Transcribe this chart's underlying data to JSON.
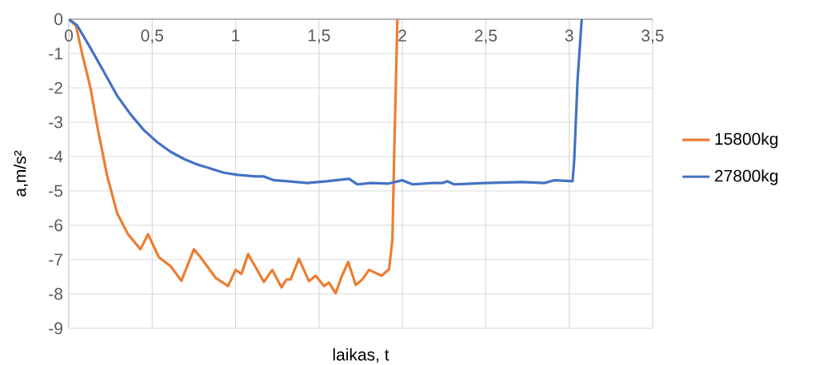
{
  "chart_data": {
    "type": "line",
    "xlabel": "laikas, t",
    "ylabel": "a,m/s²",
    "xlim": [
      0,
      3.5
    ],
    "ylim": [
      -9,
      0
    ],
    "xticks": [
      0,
      {
        "value": 0.5,
        "label": "0,5"
      },
      1,
      {
        "value": 1.5,
        "label": "1,5"
      },
      2,
      {
        "value": 2.5,
        "label": "2,5"
      },
      3,
      {
        "value": 3.5,
        "label": "3,5"
      }
    ],
    "yticks": [
      -9,
      -8,
      -7,
      -6,
      -5,
      -4,
      -3,
      -2,
      -1,
      0
    ],
    "grid": true,
    "legend": "right",
    "marker": "none",
    "line_style": "solid",
    "series": [
      {
        "name": "15800kg",
        "color": "#ed7d31",
        "x": [
          0,
          0.043,
          0.08,
          0.13,
          0.17,
          0.23,
          0.29,
          0.355,
          0.43,
          0.475,
          0.54,
          0.61,
          0.675,
          0.75,
          0.79,
          0.88,
          0.955,
          1.0,
          1.035,
          1.075,
          1.17,
          1.22,
          1.275,
          1.305,
          1.33,
          1.38,
          1.44,
          1.48,
          1.53,
          1.56,
          1.6,
          1.635,
          1.675,
          1.72,
          1.76,
          1.8,
          1.875,
          1.92,
          1.94,
          1.95,
          1.965,
          1.97
        ],
        "values": [
          0,
          -0.19,
          -1.0,
          -2.0,
          -3.1,
          -4.56,
          -5.65,
          -6.26,
          -6.7,
          -6.26,
          -6.93,
          -7.19,
          -7.62,
          -6.7,
          -6.93,
          -7.53,
          -7.77,
          -7.3,
          -7.42,
          -6.84,
          -7.65,
          -7.3,
          -7.81,
          -7.58,
          -7.58,
          -6.98,
          -7.63,
          -7.47,
          -7.77,
          -7.67,
          -7.98,
          -7.5,
          -7.07,
          -7.74,
          -7.58,
          -7.3,
          -7.47,
          -7.28,
          -6.42,
          -4.1,
          -1.0,
          0
        ]
      },
      {
        "name": "27800kg",
        "color": "#4472c4",
        "x": [
          0,
          0.05,
          0.13,
          0.21,
          0.29,
          0.37,
          0.45,
          0.53,
          0.61,
          0.69,
          0.77,
          0.85,
          0.93,
          1.01,
          1.12,
          1.17,
          1.23,
          1.31,
          1.43,
          1.55,
          1.68,
          1.73,
          1.81,
          1.915,
          2.0,
          2.06,
          2.18,
          2.24,
          2.27,
          2.31,
          2.5,
          2.72,
          2.85,
          2.91,
          3.02,
          3.03,
          3.05,
          3.075
        ],
        "values": [
          0,
          -0.18,
          -0.84,
          -1.53,
          -2.23,
          -2.77,
          -3.23,
          -3.58,
          -3.86,
          -4.07,
          -4.23,
          -4.35,
          -4.47,
          -4.53,
          -4.58,
          -4.58,
          -4.69,
          -4.72,
          -4.77,
          -4.72,
          -4.65,
          -4.81,
          -4.77,
          -4.79,
          -4.69,
          -4.81,
          -4.77,
          -4.77,
          -4.72,
          -4.81,
          -4.77,
          -4.74,
          -4.77,
          -4.69,
          -4.72,
          -4.1,
          -1.77,
          0
        ]
      }
    ]
  }
}
